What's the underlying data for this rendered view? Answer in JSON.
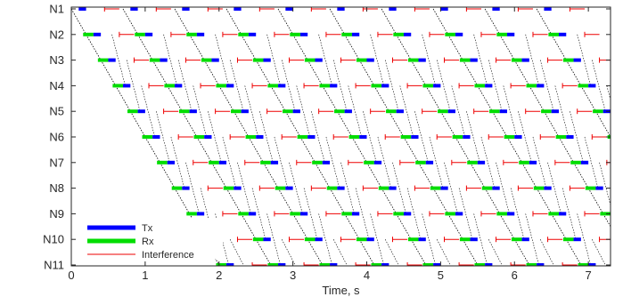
{
  "chart_data": {
    "type": "timeline",
    "title": "",
    "xlabel": "Time, s",
    "ylabel": "",
    "xlim": [
      0,
      7.3
    ],
    "xticks": [
      0,
      1,
      2,
      3,
      4,
      5,
      6,
      7
    ],
    "nodes": [
      "N1",
      "N2",
      "N3",
      "N4",
      "N5",
      "N6",
      "N7",
      "N8",
      "N9",
      "N10",
      "N11"
    ],
    "grid": false,
    "legend_position": "bottom-left",
    "legend": [
      {
        "key": "tx",
        "label": "Tx",
        "color": "#0000ff"
      },
      {
        "key": "rx",
        "label": "Rx",
        "color": "#00dd00"
      },
      {
        "key": "interference",
        "label": "Interference",
        "color": "#ee0000"
      }
    ],
    "cycle_period_s": 0.7,
    "cycles": 10,
    "row_step_s": 0.2,
    "tx_duration_s": 0.1,
    "rx_duration_s": 0.14,
    "interference_duration_s": 0.2
  },
  "colors": {
    "tx": "#0000ff",
    "rx": "#00dd00",
    "interference": "#ee0000",
    "link": "#000000",
    "axis": "#262626"
  }
}
